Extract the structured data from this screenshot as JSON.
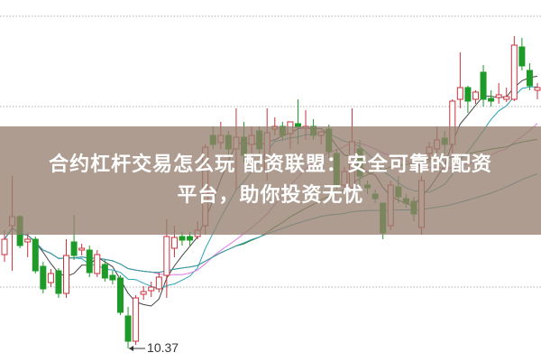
{
  "title": {
    "line1": "合约杠杆交易怎么玩 配资联盟：安全可靠的配资",
    "line2": "平台，助你投资无忧"
  },
  "chart_data": {
    "type": "candlestick",
    "title": "",
    "grid": "horizontal dotted",
    "colors": {
      "up": "#c8323c",
      "down": "#1e9a28",
      "ma5": "#444444",
      "ma10": "#2aa3b5",
      "ma20": "#e07be0",
      "ma30": "#2e7d32",
      "ma60": "#3a9db0"
    },
    "moving_averages": [
      5,
      10,
      20,
      30,
      60
    ],
    "low_annotation": {
      "label": "10.37",
      "value": 10.37
    },
    "ohlc": [
      [
        12.45,
        12.79,
        12.99,
        12.29
      ],
      [
        13.09,
        13.29,
        14.19,
        12.09
      ],
      [
        13.29,
        12.65,
        13.33,
        12.59
      ],
      [
        12.73,
        12.79,
        12.93,
        12.39
      ],
      [
        12.79,
        12.09,
        12.85,
        12.03
      ],
      [
        12.19,
        11.69,
        12.29,
        11.59
      ],
      [
        11.83,
        12.03,
        12.13,
        11.73
      ],
      [
        12.09,
        11.59,
        12.15,
        11.49
      ],
      [
        11.59,
        12.43,
        12.79,
        11.49
      ],
      [
        12.73,
        12.43,
        13.33,
        12.33
      ],
      [
        12.55,
        12.59,
        12.69,
        12.43
      ],
      [
        12.55,
        12.05,
        12.65,
        11.95
      ],
      [
        12.03,
        12.45,
        12.55,
        11.95
      ],
      [
        12.23,
        11.93,
        12.33,
        11.85
      ],
      [
        11.99,
        11.89,
        12.09,
        11.79
      ],
      [
        11.93,
        11.17,
        11.99,
        11.11
      ],
      [
        11.09,
        10.53,
        11.29,
        10.37
      ],
      [
        10.53,
        11.49,
        11.55,
        10.45
      ],
      [
        11.57,
        11.63,
        11.75,
        11.45
      ],
      [
        11.65,
        11.73,
        11.85,
        11.51
      ],
      [
        11.69,
        11.95,
        12.05,
        11.61
      ],
      [
        11.99,
        12.85,
        13.23,
        11.49
      ],
      [
        12.59,
        12.83,
        13.09,
        12.39
      ],
      [
        12.85,
        12.77,
        12.95,
        12.65
      ],
      [
        12.85,
        12.77,
        12.95,
        12.65
      ],
      [
        12.85,
        12.99,
        13.19,
        12.79
      ],
      [
        13.09,
        14.83,
        14.89,
        12.89
      ],
      [
        15.09,
        14.89,
        15.29,
        14.79
      ],
      [
        14.93,
        15.09,
        15.39,
        14.79
      ],
      [
        15.09,
        14.79,
        15.19,
        14.59
      ],
      [
        14.79,
        15.05,
        15.69,
        13.89
      ],
      [
        15.05,
        14.65,
        15.39,
        14.49
      ],
      [
        14.89,
        15.09,
        15.29,
        14.69
      ],
      [
        15.19,
        14.79,
        15.29,
        14.59
      ],
      [
        14.29,
        15.15,
        15.69,
        14.09
      ],
      [
        15.23,
        15.29,
        15.49,
        15.09
      ],
      [
        15.29,
        15.09,
        15.39,
        14.99
      ],
      [
        15.13,
        15.39,
        15.39,
        14.79
      ],
      [
        15.35,
        15.27,
        15.89,
        14.89
      ],
      [
        15.25,
        15.29,
        15.65,
        14.99
      ],
      [
        15.29,
        15.09,
        15.45,
        14.99
      ],
      [
        15.09,
        15.17,
        15.19,
        14.89
      ],
      [
        15.23,
        14.73,
        15.33,
        14.59
      ],
      [
        14.69,
        13.99,
        14.79,
        13.89
      ],
      [
        13.99,
        14.29,
        14.39,
        13.89
      ],
      [
        13.93,
        14.95,
        15.69,
        13.89
      ],
      [
        14.79,
        14.19,
        14.99,
        13.89
      ],
      [
        13.99,
        13.93,
        14.09,
        13.79
      ],
      [
        13.79,
        13.69,
        13.89,
        13.59
      ],
      [
        13.59,
        12.93,
        13.59,
        12.79
      ],
      [
        13.09,
        13.99,
        14.09,
        12.99
      ],
      [
        13.95,
        13.73,
        14.19,
        13.59
      ],
      [
        13.69,
        13.59,
        13.79,
        13.49
      ],
      [
        13.63,
        13.35,
        13.73,
        13.19
      ],
      [
        13.05,
        14.09,
        14.19,
        12.89
      ],
      [
        14.69,
        14.83,
        14.95,
        14.49
      ],
      [
        14.79,
        14.99,
        15.29,
        14.69
      ],
      [
        15.03,
        14.89,
        15.19,
        14.69
      ],
      [
        14.89,
        15.85,
        15.89,
        14.59
      ],
      [
        15.89,
        16.15,
        16.93,
        15.69
      ],
      [
        16.15,
        15.85,
        16.19,
        15.59
      ],
      [
        15.89,
        16.05,
        16.09,
        15.79
      ],
      [
        16.49,
        15.89,
        16.65,
        15.73
      ],
      [
        15.91,
        15.85,
        16.09,
        15.73
      ],
      [
        15.93,
        15.99,
        16.25,
        15.79
      ],
      [
        15.89,
        15.95,
        16.15,
        15.83
      ],
      [
        15.89,
        17.09,
        17.29,
        15.85
      ],
      [
        17.05,
        16.63,
        17.25,
        16.53
      ],
      [
        16.53,
        16.19,
        16.69,
        16.09
      ],
      [
        16.09,
        16.15,
        16.25,
        15.89
      ]
    ]
  }
}
